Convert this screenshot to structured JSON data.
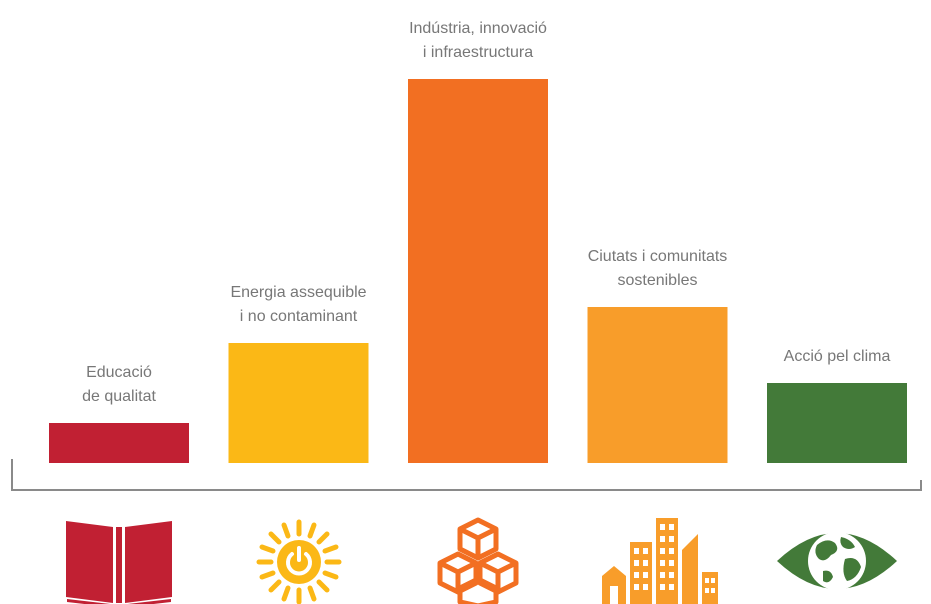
{
  "chart_data": {
    "type": "bar",
    "categories": [
      [
        "Educació",
        "de qualitat"
      ],
      [
        "Energia assequible",
        "i no contaminant"
      ],
      [
        "Indústria, innovació",
        "i infraestructura"
      ],
      [
        "Ciutats i comunitats",
        "sostenibles"
      ],
      [
        "Acció pel clima"
      ]
    ],
    "values": [
      1,
      3,
      9.6,
      3.9,
      2
    ],
    "ylim": [
      0,
      10
    ],
    "grid": false,
    "legend": "none",
    "colors": [
      "#c12033",
      "#fbb816",
      "#f26f22",
      "#f89d2a",
      "#437a39"
    ],
    "axis_color": "#8a8a8a",
    "label_color": "#777777",
    "icons": [
      "book-icon",
      "sun-power-icon",
      "cubes-icon",
      "city-buildings-icon",
      "eye-globe-icon"
    ]
  }
}
